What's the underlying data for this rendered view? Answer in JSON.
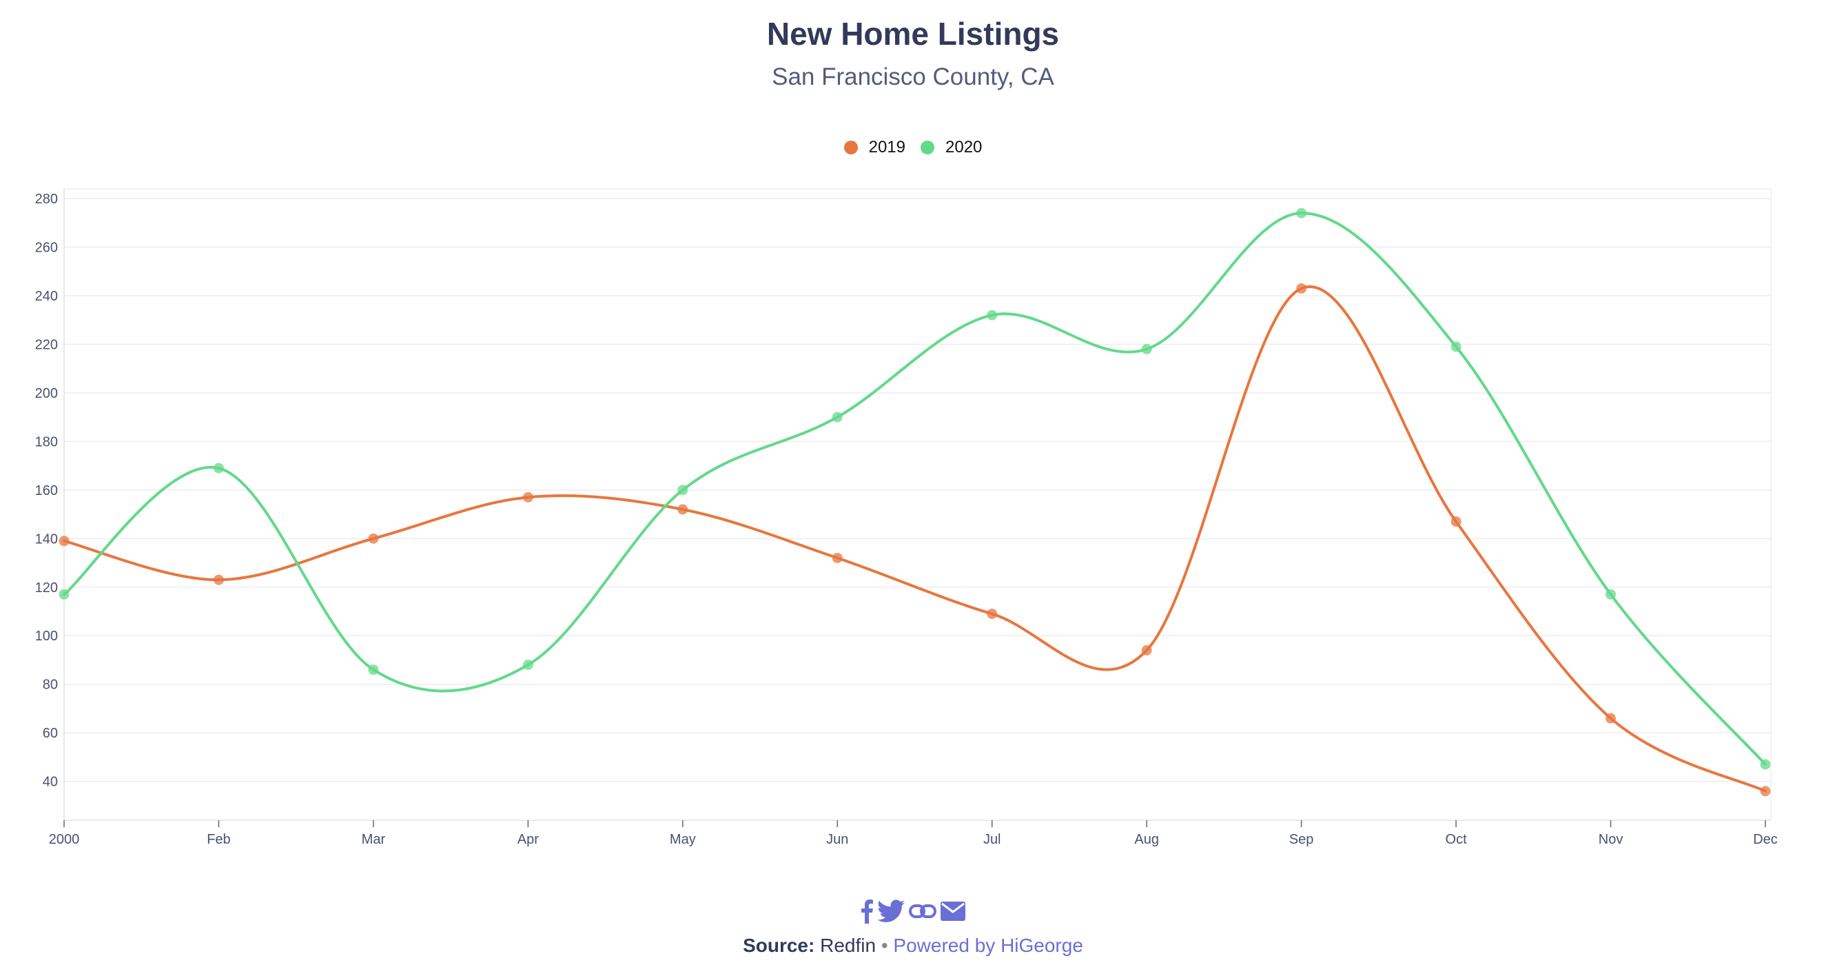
{
  "title": "New Home Listings",
  "subtitle": "San Francisco County, CA",
  "colors": {
    "series_2019": "#e8763f",
    "series_2020": "#63d98a",
    "title": "#33395a",
    "grid": "#eeeeee",
    "accent": "#6a6fd6"
  },
  "chart_data": {
    "type": "line",
    "title": "New Home Listings",
    "subtitle": "San Francisco County, CA",
    "categories": [
      "2000",
      "Feb",
      "Mar",
      "Apr",
      "May",
      "Jun",
      "Jul",
      "Aug",
      "Sep",
      "Oct",
      "Nov",
      "Dec"
    ],
    "series": [
      {
        "name": "2019",
        "color": "#e8763f",
        "values": [
          139,
          123,
          140,
          157,
          152,
          132,
          109,
          94,
          243,
          147,
          66,
          36
        ]
      },
      {
        "name": "2020",
        "color": "#63d98a",
        "values": [
          117,
          169,
          86,
          88,
          160,
          190,
          232,
          218,
          274,
          219,
          117,
          47
        ]
      }
    ],
    "yticks": [
      40,
      60,
      80,
      100,
      120,
      140,
      160,
      180,
      200,
      220,
      240,
      260,
      280
    ],
    "ylim": [
      24,
      284
    ],
    "xlabel": "",
    "ylabel": "",
    "grid": true,
    "legend": "top-center",
    "smooth": true
  },
  "footer": {
    "source_label": "Source:",
    "source_value": "Redfin",
    "separator": "•",
    "powered_by": "Powered by HiGeorge",
    "share_icons": [
      "facebook-icon",
      "twitter-icon",
      "link-icon",
      "email-icon"
    ]
  }
}
